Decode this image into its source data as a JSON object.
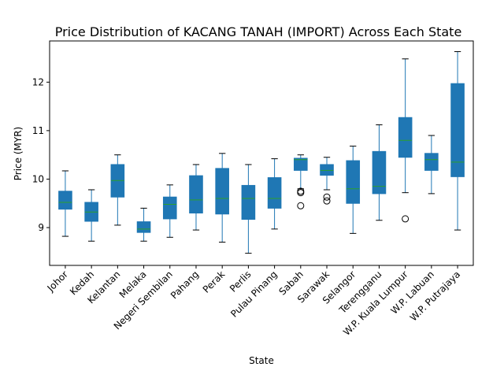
{
  "chart_data": {
    "type": "boxplot",
    "title": "Price Distribution of KACANG TANAH (IMPORT) Across Each State",
    "xlabel": "State",
    "ylabel": "Price (MYR)",
    "ylim": [
      8.22,
      12.85
    ],
    "yticks": [
      9,
      10,
      11,
      12
    ],
    "grid": false,
    "box_color": "#1f77b4",
    "median_color": "#2ca02c",
    "whisker_color": "#1f77b4",
    "categories": [
      "Johor",
      "Kedah",
      "Kelantan",
      "Melaka",
      "Negeri Sembilan",
      "Pahang",
      "Perak",
      "Perlis",
      "Pulau Pinang",
      "Sabah",
      "Sarawak",
      "Selangor",
      "Terengganu",
      "W.P. Kuala Lumpur",
      "W.P. Labuan",
      "W.P. Putrajaya"
    ],
    "boxes": [
      {
        "min": 8.82,
        "q1": 9.38,
        "median": 9.52,
        "q3": 9.75,
        "max": 10.17,
        "outliers": []
      },
      {
        "min": 8.72,
        "q1": 9.13,
        "median": 9.32,
        "q3": 9.52,
        "max": 9.78,
        "outliers": []
      },
      {
        "min": 9.05,
        "q1": 9.63,
        "median": 9.97,
        "q3": 10.3,
        "max": 10.5,
        "outliers": []
      },
      {
        "min": 8.72,
        "q1": 8.9,
        "median": 8.97,
        "q3": 9.12,
        "max": 9.4,
        "outliers": []
      },
      {
        "min": 8.8,
        "q1": 9.18,
        "median": 9.48,
        "q3": 9.63,
        "max": 9.88,
        "outliers": []
      },
      {
        "min": 8.95,
        "q1": 9.3,
        "median": 9.57,
        "q3": 10.07,
        "max": 10.3,
        "outliers": []
      },
      {
        "min": 8.7,
        "q1": 9.28,
        "median": 9.6,
        "q3": 10.22,
        "max": 10.53,
        "outliers": []
      },
      {
        "min": 8.47,
        "q1": 9.17,
        "median": 9.6,
        "q3": 9.87,
        "max": 10.3,
        "outliers": []
      },
      {
        "min": 8.97,
        "q1": 9.4,
        "median": 9.6,
        "q3": 10.03,
        "max": 10.42,
        "outliers": []
      },
      {
        "min": 9.8,
        "q1": 10.18,
        "median": 10.4,
        "q3": 10.43,
        "max": 10.5,
        "outliers": [
          9.72,
          9.75,
          9.45
        ]
      },
      {
        "min": 9.78,
        "q1": 10.08,
        "median": 10.18,
        "q3": 10.3,
        "max": 10.45,
        "outliers": [
          9.63,
          9.55
        ]
      },
      {
        "min": 8.88,
        "q1": 9.5,
        "median": 9.8,
        "q3": 10.38,
        "max": 10.68,
        "outliers": []
      },
      {
        "min": 9.15,
        "q1": 9.7,
        "median": 9.85,
        "q3": 10.57,
        "max": 11.12,
        "outliers": []
      },
      {
        "min": 9.72,
        "q1": 10.45,
        "median": 10.8,
        "q3": 11.27,
        "max": 12.48,
        "outliers": [
          9.18
        ]
      },
      {
        "min": 9.7,
        "q1": 10.18,
        "median": 10.4,
        "q3": 10.53,
        "max": 10.9,
        "outliers": []
      },
      {
        "min": 8.95,
        "q1": 10.05,
        "median": 10.35,
        "q3": 11.97,
        "max": 12.63,
        "outliers": []
      }
    ]
  }
}
